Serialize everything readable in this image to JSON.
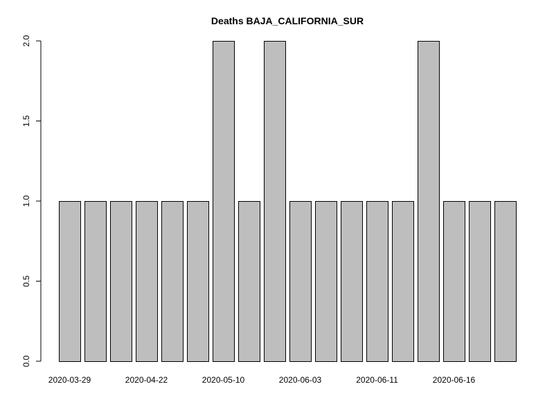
{
  "chart_data": {
    "type": "bar",
    "title": "Deaths BAJA_CALIFORNIA_SUR",
    "xlabel": "",
    "ylabel": "",
    "ylim": [
      0,
      2
    ],
    "yticks": [
      0.0,
      0.5,
      1.0,
      1.5,
      2.0
    ],
    "ytick_labels": [
      "0.0",
      "0.5",
      "1.0",
      "1.5",
      "2.0"
    ],
    "values": [
      1,
      1,
      1,
      1,
      1,
      1,
      2,
      1,
      2,
      1,
      1,
      1,
      1,
      1,
      2,
      1,
      1,
      1
    ],
    "xtick_labels": [
      {
        "bar_index": 0,
        "label": "2020-03-29"
      },
      {
        "bar_index": 3,
        "label": "2020-04-22"
      },
      {
        "bar_index": 6,
        "label": "2020-05-10"
      },
      {
        "bar_index": 9,
        "label": "2020-06-03"
      },
      {
        "bar_index": 12,
        "label": "2020-06-11"
      },
      {
        "bar_index": 15,
        "label": "2020-06-16"
      }
    ],
    "bar_color": "#bebebe",
    "grid": false,
    "legend": "none"
  }
}
